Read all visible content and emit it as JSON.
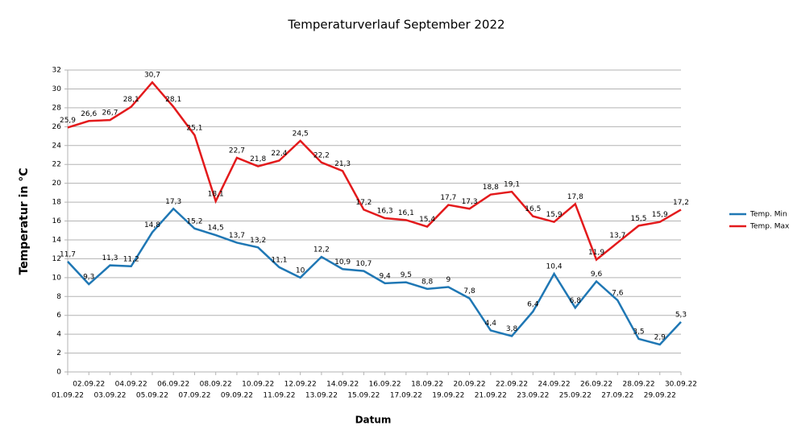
{
  "chart_data": {
    "type": "line",
    "title": "Temperaturverlauf September 2022",
    "x_label": "Datum",
    "y_label": "Temperatur in °C",
    "categories": [
      "01.09.22",
      "02.09.22",
      "03.09.22",
      "04.09.22",
      "05.09.22",
      "06.09.22",
      "07.09.22",
      "08.09.22",
      "09.09.22",
      "10.09.22",
      "11.09.22",
      "12.09.22",
      "13.09.22",
      "14.09.22",
      "15.09.22",
      "16.09.22",
      "17.09.22",
      "18.09.22",
      "19.09.22",
      "20.09.22",
      "21.09.22",
      "22.09.22",
      "23.09.22",
      "24.09.22",
      "25.09.22",
      "26.09.22",
      "27.09.22",
      "28.09.22",
      "29.09.22",
      "30.09.22"
    ],
    "series": [
      {
        "name": "Temp. Min",
        "color": "#1f77b4",
        "values": [
          11.7,
          9.3,
          11.3,
          11.2,
          14.8,
          17.3,
          15.2,
          14.5,
          13.7,
          13.2,
          11.1,
          10,
          12.2,
          10.9,
          10.7,
          9.4,
          9.5,
          8.8,
          9,
          7.8,
          4.4,
          3.8,
          6.4,
          10.4,
          6.8,
          9.6,
          7.6,
          3.5,
          2.9,
          5.3
        ],
        "value_labels": [
          "11,7",
          "9,3",
          "11,3",
          "11,2",
          "14,8",
          "17,3",
          "15,2",
          "14,5",
          "13,7",
          "13,2",
          "11,1",
          "10",
          "12,2",
          "10,9",
          "10,7",
          "9,4",
          "9,5",
          "8,8",
          "9",
          "7,8",
          "4,4",
          "3,8",
          "6,4",
          "10,4",
          "6,8",
          "9,6",
          "7,6",
          "3,5",
          "2,9",
          "5,3"
        ]
      },
      {
        "name": "Temp. Max",
        "color": "#e31a1c",
        "values": [
          25.9,
          26.6,
          26.7,
          28.1,
          30.7,
          28.1,
          25.1,
          18.1,
          22.7,
          21.8,
          22.4,
          24.5,
          22.2,
          21.3,
          17.2,
          16.3,
          16.1,
          15.4,
          17.7,
          17.3,
          18.8,
          19.1,
          16.5,
          15.9,
          17.8,
          11.9,
          13.7,
          15.5,
          15.9,
          17.2
        ],
        "value_labels": [
          "25,9",
          "26,6",
          "26,7",
          "28,1",
          "30,7",
          "28,1",
          "25,1",
          "18,1",
          "22,7",
          "21,8",
          "22,4",
          "24,5",
          "22,2",
          "21,3",
          "17,2",
          "16,3",
          "16,1",
          "15,4",
          "17,7",
          "17,3",
          "18,8",
          "19,1",
          "16,5",
          "15,9",
          "17,8",
          "11,9",
          "13,7",
          "15,5",
          "15,9",
          "17,2"
        ]
      }
    ],
    "ylim": [
      0,
      32
    ],
    "yticks": [
      0,
      2,
      4,
      6,
      8,
      10,
      12,
      14,
      16,
      18,
      20,
      22,
      24,
      26,
      28,
      30,
      32
    ],
    "grid": true,
    "legend": "right"
  }
}
